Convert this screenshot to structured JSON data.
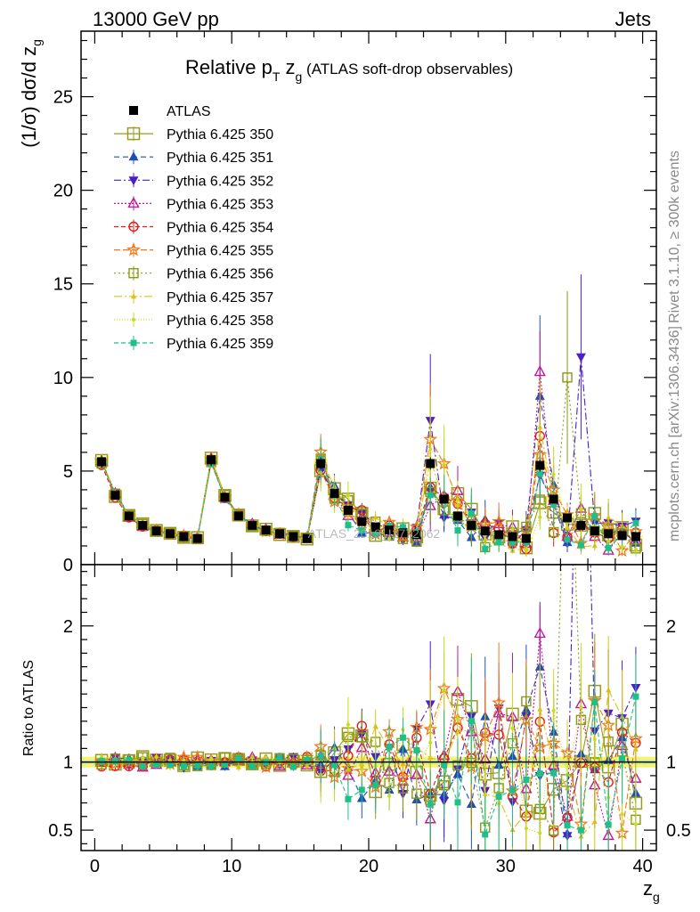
{
  "header": {
    "left": "13000 GeV pp",
    "right": "Jets"
  },
  "title": {
    "main": "Relative p",
    "sub_T": "T",
    "mid": " z",
    "sub_g": "g",
    "suffix": " (ATLAS soft-drop observables)"
  },
  "side_labels": {
    "rivet": "Rivet 3.1.10, ≥ 300k events",
    "mcplots": "mcplots.cern.ch [arXiv:1306.3436]"
  },
  "watermark": "ATLAS_2019_I1772062",
  "colors": {
    "reference_band": "#f2f560",
    "reference_band_inner": "#d8f0a0"
  },
  "chart_data": [
    {
      "type": "scatter",
      "panel": "main",
      "title": "Relative pT zg (ATLAS soft-drop observables)",
      "ylabel": "(1/σ) dσ/d z",
      "ylabel_sub": "g",
      "xlabel": "",
      "xlim": [
        -1,
        41
      ],
      "ylim": [
        0,
        28.5
      ],
      "yticks": [
        "0",
        "5",
        "10",
        "15",
        "20",
        "25"
      ],
      "x": [
        0.5,
        1.5,
        2.5,
        3.5,
        4.5,
        5.5,
        6.5,
        7.5,
        8.5,
        9.5,
        10.5,
        11.5,
        12.5,
        13.5,
        14.5,
        15.5,
        16.5,
        17.5,
        18.5,
        19.5,
        20.5,
        21.5,
        22.5,
        23.5,
        24.5,
        25.5,
        26.5,
        27.5,
        28.5,
        29.5,
        30.5,
        31.5,
        32.5,
        33.5,
        34.5,
        35.5,
        36.5,
        37.5,
        38.5,
        39.5
      ],
      "atlas_y": [
        5.5,
        3.7,
        2.6,
        2.1,
        1.8,
        1.65,
        1.5,
        1.4,
        5.6,
        3.6,
        2.6,
        2.1,
        1.85,
        1.65,
        1.5,
        1.4,
        5.4,
        3.8,
        2.9,
        2.3,
        2.0,
        1.85,
        1.7,
        1.6,
        5.4,
        3.5,
        2.6,
        2.1,
        1.8,
        1.6,
        1.5,
        1.4,
        5.3,
        3.5,
        2.5,
        2.1,
        1.8,
        1.65,
        1.55,
        1.5
      ],
      "series": [
        {
          "name": "ATLAS",
          "color": "#000000",
          "marker": "square-filled",
          "dash": "none"
        },
        {
          "name": "Pythia 6.425 350",
          "color": "#9a9a20",
          "marker": "square-open-large",
          "dash": "solid"
        },
        {
          "name": "Pythia 6.425 351",
          "color": "#1f4fb5",
          "marker": "triangle-up-filled",
          "dash": "6,4"
        },
        {
          "name": "Pythia 6.425 352",
          "color": "#4b1fc7",
          "marker": "triangle-down-filled",
          "dash": "8,3,2,3"
        },
        {
          "name": "Pythia 6.425 353",
          "color": "#c01a9a",
          "marker": "triangle-up-open",
          "dash": "2,2"
        },
        {
          "name": "Pythia 6.425 354",
          "color": "#e01c1c",
          "marker": "circle-open",
          "dash": "5,3"
        },
        {
          "name": "Pythia 6.425 355",
          "color": "#ef7a1a",
          "marker": "star-open",
          "dash": "7,3"
        },
        {
          "name": "Pythia 6.425 356",
          "color": "#8a9a10",
          "marker": "square-open",
          "dash": "2,3"
        },
        {
          "name": "Pythia 6.425 357",
          "color": "#d8c21a",
          "marker": "tri-small",
          "dash": "9,3,2,3"
        },
        {
          "name": "Pythia 6.425 358",
          "color": "#c8dc1e",
          "marker": "dot-small",
          "dash": "1,2"
        },
        {
          "name": "Pythia 6.425 359",
          "color": "#1fbf8a",
          "marker": "square-filled-small",
          "dash": "5,3"
        }
      ],
      "notable_peaks": [
        {
          "series": "Pythia 6.425 352",
          "x": 35.5,
          "y": 11.1
        },
        {
          "series": "Pythia 6.425 353",
          "x": 32.5,
          "y": 10.3
        },
        {
          "series": "Pythia 6.425 356",
          "x": 34.5,
          "y": 10.0
        },
        {
          "series": "Pythia 6.425 351",
          "x": 32.5,
          "y": 9.0
        },
        {
          "series": "Pythia 6.425 352",
          "x": 24.5,
          "y": 7.7
        }
      ]
    },
    {
      "type": "scatter",
      "panel": "ratio",
      "ylabel": "Ratio to ATLAS",
      "xlabel": "z",
      "xlabel_sub": "g",
      "xlim": [
        -1,
        41
      ],
      "ylim": [
        0.35,
        2.45
      ],
      "xticks": [
        "0",
        "10",
        "20",
        "30",
        "40"
      ],
      "yticks": [
        "0.5",
        "1",
        "2"
      ],
      "reference": 1.0
    }
  ]
}
